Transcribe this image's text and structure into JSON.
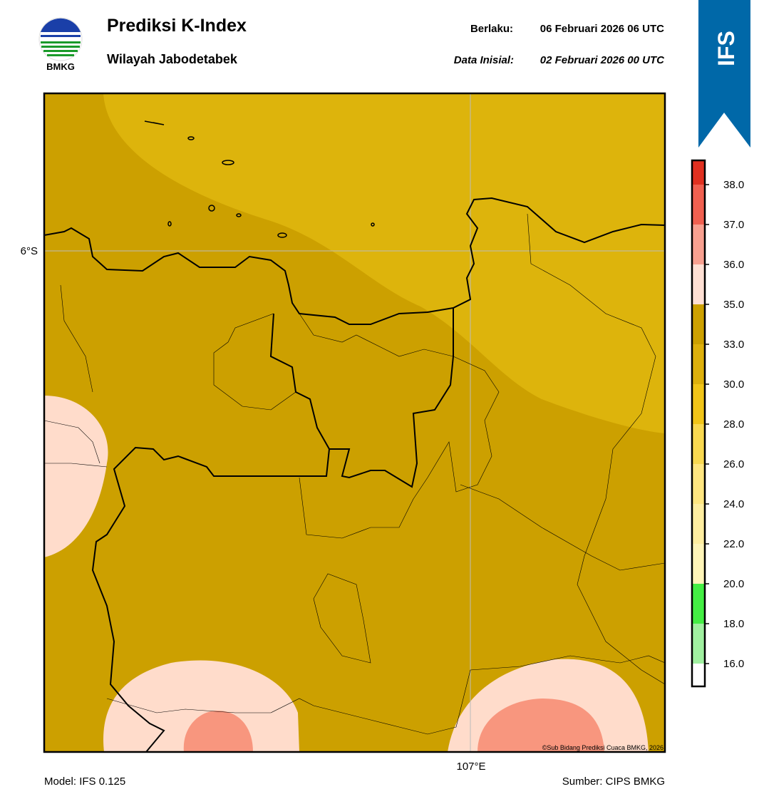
{
  "header": {
    "logo_text": "BMKG",
    "title": "Prediksi K-Index",
    "subtitle": "Wilayah Jabodetabek",
    "valid_label": "Berlaku:",
    "valid_time": "06 Februari 2026 06 UTC",
    "init_label": "Data Inisial:",
    "init_time": "02 Februari 2026 00 UTC",
    "badge": "IFS"
  },
  "map": {
    "lat_label": "6°S",
    "lon_label": "107°E",
    "credit": "©Sub Bidang Prediksi Cuaca BMKG, 2026"
  },
  "colorbar": {
    "colors": [
      "#ffffff",
      "#a0f0a0",
      "#44ee44",
      "#fff5b8",
      "#ffeea0",
      "#ffe680",
      "#f8d850",
      "#f0c418",
      "#ddb00c",
      "#cca000",
      "#ffe0d4",
      "#f8a090",
      "#f06050",
      "#e03020"
    ],
    "ticks": [
      {
        "value": 16,
        "label": "16.0"
      },
      {
        "value": 18,
        "label": "18.0"
      },
      {
        "value": 20,
        "label": "20.0"
      },
      {
        "value": 22,
        "label": "22.0"
      },
      {
        "value": 24,
        "label": "24.0"
      },
      {
        "value": 26,
        "label": "26.0"
      },
      {
        "value": 28,
        "label": "28.0"
      },
      {
        "value": 30,
        "label": "30.0"
      },
      {
        "value": 33,
        "label": "33.0"
      },
      {
        "value": 35,
        "label": "35.0"
      },
      {
        "value": 36,
        "label": "36.0"
      },
      {
        "value": 37,
        "label": "37.0"
      },
      {
        "value": 38,
        "label": "38.0"
      }
    ]
  },
  "footer": {
    "model": "Model: IFS 0.125",
    "source": "Sumber: CIPS BMKG"
  }
}
